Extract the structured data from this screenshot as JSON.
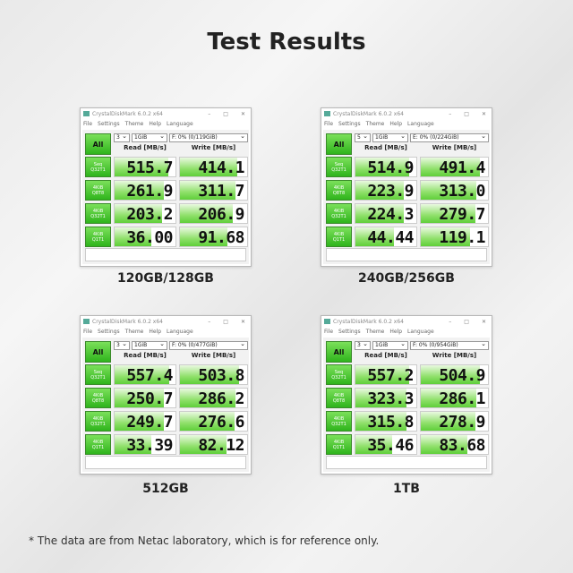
{
  "title": "Test Results",
  "footnote": "* The data are from Netac laboratory, which is for reference only.",
  "accent": "#2fb41c",
  "window_title": "CrystalDiskMark 6.0.2 x64",
  "menu": [
    "File",
    "Settings",
    "Theme",
    "Help",
    "Language"
  ],
  "all_label": "All",
  "read_header": "Read [MB/s]",
  "write_header": "Write [MB/s]",
  "row_labels": [
    [
      "Seq",
      "Q32T1"
    ],
    [
      "4KiB",
      "Q8T8"
    ],
    [
      "4KiB",
      "Q32T1"
    ],
    [
      "4KiB",
      "Q1T1"
    ]
  ],
  "panels": [
    {
      "caption": "120GB/128GB",
      "count": "3",
      "size": "1GiB",
      "drive": "F: 0% (0/119GiB)",
      "read": [
        "515.7",
        "261.9",
        "203.2",
        "36.00"
      ],
      "write": [
        "414.1",
        "311.7",
        "206.9",
        "91.68"
      ]
    },
    {
      "caption": "240GB/256GB",
      "count": "5",
      "size": "1GiB",
      "drive": "E: 0% (0/224GiB)",
      "read": [
        "514.9",
        "223.9",
        "224.3",
        "44.44"
      ],
      "write": [
        "491.4",
        "313.0",
        "279.7",
        "119.1"
      ]
    },
    {
      "caption": "512GB",
      "count": "3",
      "size": "1GiB",
      "drive": "F: 0% (0/477GiB)",
      "read": [
        "557.4",
        "250.7",
        "249.7",
        "33.39"
      ],
      "write": [
        "503.8",
        "286.2",
        "276.6",
        "82.12"
      ]
    },
    {
      "caption": "1TB",
      "count": "3",
      "size": "1GiB",
      "drive": "F: 0% (0/954GiB)",
      "read": [
        "557.2",
        "323.3",
        "315.8",
        "35.46"
      ],
      "write": [
        "504.9",
        "286.1",
        "278.9",
        "83.68"
      ]
    }
  ]
}
